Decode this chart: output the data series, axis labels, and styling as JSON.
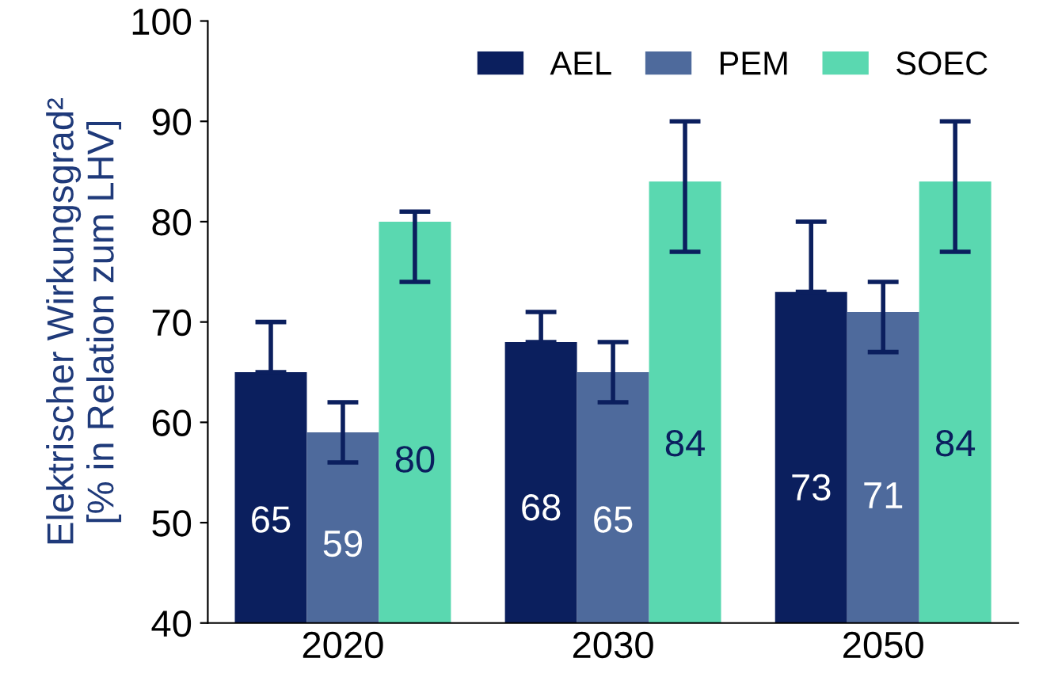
{
  "chart_data": {
    "type": "bar",
    "ylabel": "Elektrischer Wirkungsgrad²\n[% in Relation zum LHV]",
    "categories": [
      "2020",
      "2030",
      "2050"
    ],
    "series": [
      {
        "name": "AEL",
        "color": "#0b1f5e",
        "values": [
          65,
          68,
          73
        ],
        "errors": [
          [
            65,
            70
          ],
          [
            68,
            71
          ],
          [
            73,
            80
          ]
        ]
      },
      {
        "name": "PEM",
        "color": "#4e6a9c",
        "values": [
          59,
          65,
          71
        ],
        "errors": [
          [
            56,
            62
          ],
          [
            62,
            68
          ],
          [
            67,
            74
          ]
        ]
      },
      {
        "name": "SOEC",
        "color": "#5ad8b0",
        "values": [
          80,
          84,
          84
        ],
        "errors": [
          [
            74,
            81
          ],
          [
            77,
            90
          ],
          [
            77,
            90
          ]
        ]
      }
    ],
    "ylim": [
      40,
      100
    ],
    "yticks": [
      40,
      50,
      60,
      70,
      80,
      90,
      100
    ],
    "data_labels": true,
    "grid": false,
    "legend": "top right"
  }
}
